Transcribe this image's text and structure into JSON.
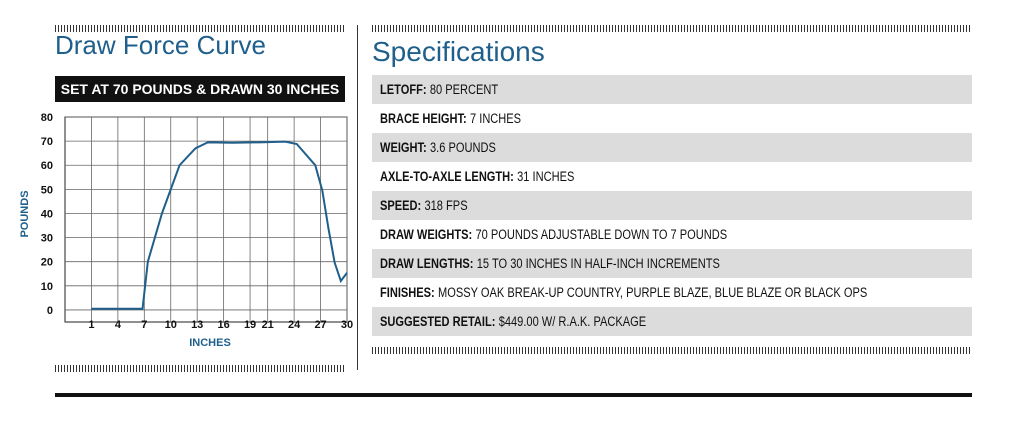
{
  "chart_data": {
    "type": "line",
    "title": "Draw Force Curve",
    "subtitle": "SET AT 70 POUNDS & DRAWN 30 INCHES",
    "x_label": "INCHES",
    "y_label": "POUNDS",
    "x": [
      1,
      4,
      6.8,
      7.4,
      9,
      11,
      12.8,
      14.2,
      17,
      20,
      23,
      24.3,
      26.4,
      27.2,
      27.9,
      28.6,
      29.3,
      30
    ],
    "values": [
      0.5,
      0.5,
      0.5,
      20,
      40,
      60,
      67,
      69.5,
      69.3,
      69.5,
      69.8,
      68.8,
      60,
      49.5,
      33.7,
      19.6,
      12,
      15.4
    ],
    "color": "#1f5f8b",
    "xlim": [
      -2,
      30
    ],
    "xticks": [
      1,
      4,
      7,
      10,
      13,
      16,
      19,
      21,
      24,
      27,
      30
    ],
    "ylim": [
      -5,
      80
    ],
    "yticks": [
      0,
      10,
      20,
      30,
      40,
      50,
      60,
      70,
      80
    ],
    "grid": true
  },
  "specifications": {
    "title": "Specifications",
    "rows": [
      {
        "label": "LETOFF:",
        "value": "80 PERCENT"
      },
      {
        "label": "BRACE HEIGHT:",
        "value": "7 INCHES"
      },
      {
        "label": "WEIGHT:",
        "value": "3.6 POUNDS"
      },
      {
        "label": "AXLE-TO-AXLE LENGTH:",
        "value": "31 INCHES"
      },
      {
        "label": "SPEED:",
        "value": "318 FPS"
      },
      {
        "label": "DRAW WEIGHTS:",
        "value": "70 POUNDS ADJUSTABLE DOWN TO 7 POUNDS"
      },
      {
        "label": "DRAW LENGTHS:",
        "value": "15 TO 30 INCHES IN HALF-INCH INCREMENTS"
      },
      {
        "label": "FINISHES:",
        "value": "MOSSY OAK BREAK-UP COUNTRY, PURPLE BLAZE, BLUE BLAZE OR BLACK OPS"
      },
      {
        "label": "SUGGESTED RETAIL:",
        "value": "$449.00 W/ R.A.K. PACKAGE"
      }
    ]
  }
}
